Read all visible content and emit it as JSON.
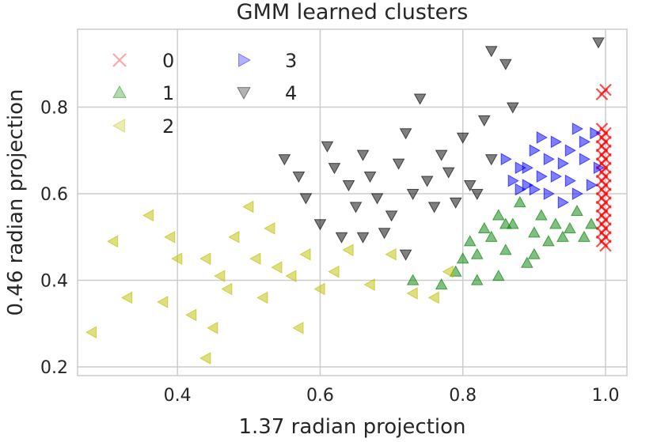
{
  "chart_data": {
    "type": "scatter",
    "title": "GMM learned clusters",
    "xlabel": "1.37 radian projection",
    "ylabel": "0.46 radian projection",
    "xlim": [
      0.26,
      1.03
    ],
    "ylim": [
      0.18,
      0.98
    ],
    "xticks": [
      "0.4",
      "0.6",
      "0.8",
      "1.0"
    ],
    "yticks": [
      "0.2",
      "0.4",
      "0.6",
      "0.8"
    ],
    "grid": true,
    "legend_position": "top-left",
    "series": [
      {
        "name": "0",
        "marker": "x",
        "color": "#ff0000",
        "points": [
          [
            1.0,
            0.84
          ],
          [
            0.995,
            0.83
          ],
          [
            0.995,
            0.75
          ],
          [
            1.0,
            0.74
          ],
          [
            0.995,
            0.73
          ],
          [
            1.0,
            0.72
          ],
          [
            0.995,
            0.71
          ],
          [
            1.0,
            0.7
          ],
          [
            0.995,
            0.69
          ],
          [
            1.0,
            0.68
          ],
          [
            0.995,
            0.67
          ],
          [
            1.0,
            0.66
          ],
          [
            0.995,
            0.65
          ],
          [
            1.0,
            0.64
          ],
          [
            0.995,
            0.63
          ],
          [
            1.0,
            0.62
          ],
          [
            0.995,
            0.61
          ],
          [
            1.0,
            0.6
          ],
          [
            0.995,
            0.59
          ],
          [
            1.0,
            0.58
          ],
          [
            0.995,
            0.57
          ],
          [
            1.0,
            0.56
          ],
          [
            0.995,
            0.55
          ],
          [
            1.0,
            0.54
          ],
          [
            0.995,
            0.53
          ],
          [
            1.0,
            0.52
          ],
          [
            0.995,
            0.51
          ],
          [
            1.0,
            0.5
          ],
          [
            0.995,
            0.49
          ],
          [
            1.0,
            0.48
          ]
        ]
      },
      {
        "name": "1",
        "marker": "triangle-up",
        "color": "#008000",
        "points": [
          [
            0.77,
            0.39
          ],
          [
            0.79,
            0.42
          ],
          [
            0.8,
            0.45
          ],
          [
            0.81,
            0.49
          ],
          [
            0.82,
            0.46
          ],
          [
            0.83,
            0.52
          ],
          [
            0.84,
            0.5
          ],
          [
            0.85,
            0.55
          ],
          [
            0.86,
            0.47
          ],
          [
            0.87,
            0.53
          ],
          [
            0.88,
            0.58
          ],
          [
            0.89,
            0.44
          ],
          [
            0.9,
            0.51
          ],
          [
            0.91,
            0.55
          ],
          [
            0.92,
            0.49
          ],
          [
            0.93,
            0.53
          ],
          [
            0.94,
            0.5
          ],
          [
            0.95,
            0.52
          ],
          [
            0.96,
            0.56
          ],
          [
            0.97,
            0.5
          ],
          [
            0.98,
            0.53
          ],
          [
            0.73,
            0.4
          ],
          [
            0.82,
            0.4
          ],
          [
            0.85,
            0.41
          ],
          [
            0.9,
            0.46
          ],
          [
            0.86,
            0.53
          ]
        ]
      },
      {
        "name": "2",
        "marker": "triangle-left",
        "color": "#bfbf00",
        "points": [
          [
            0.28,
            0.28
          ],
          [
            0.31,
            0.49
          ],
          [
            0.33,
            0.36
          ],
          [
            0.36,
            0.55
          ],
          [
            0.38,
            0.35
          ],
          [
            0.39,
            0.5
          ],
          [
            0.4,
            0.45
          ],
          [
            0.42,
            0.32
          ],
          [
            0.44,
            0.45
          ],
          [
            0.45,
            0.29
          ],
          [
            0.46,
            0.41
          ],
          [
            0.47,
            0.38
          ],
          [
            0.48,
            0.5
          ],
          [
            0.5,
            0.57
          ],
          [
            0.51,
            0.45
          ],
          [
            0.52,
            0.36
          ],
          [
            0.53,
            0.52
          ],
          [
            0.54,
            0.43
          ],
          [
            0.56,
            0.41
          ],
          [
            0.57,
            0.29
          ],
          [
            0.58,
            0.46
          ],
          [
            0.6,
            0.38
          ],
          [
            0.62,
            0.42
          ],
          [
            0.64,
            0.47
          ],
          [
            0.67,
            0.39
          ],
          [
            0.7,
            0.46
          ],
          [
            0.73,
            0.37
          ],
          [
            0.76,
            0.36
          ],
          [
            0.78,
            0.42
          ],
          [
            0.44,
            0.22
          ]
        ]
      },
      {
        "name": "3",
        "marker": "triangle-right",
        "color": "#0000ff",
        "points": [
          [
            0.86,
            0.68
          ],
          [
            0.87,
            0.63
          ],
          [
            0.88,
            0.61
          ],
          [
            0.89,
            0.66
          ],
          [
            0.9,
            0.7
          ],
          [
            0.91,
            0.64
          ],
          [
            0.92,
            0.6
          ],
          [
            0.93,
            0.72
          ],
          [
            0.94,
            0.67
          ],
          [
            0.95,
            0.63
          ],
          [
            0.96,
            0.75
          ],
          [
            0.97,
            0.68
          ],
          [
            0.98,
            0.62
          ],
          [
            0.985,
            0.74
          ],
          [
            0.99,
            0.66
          ],
          [
            0.92,
            0.68
          ],
          [
            0.94,
            0.58
          ],
          [
            0.96,
            0.6
          ],
          [
            0.88,
            0.66
          ],
          [
            0.9,
            0.61
          ],
          [
            0.97,
            0.72
          ],
          [
            0.95,
            0.7
          ],
          [
            0.93,
            0.64
          ],
          [
            0.91,
            0.73
          ],
          [
            0.89,
            0.62
          ]
        ]
      },
      {
        "name": "4",
        "marker": "triangle-down",
        "color": "#000000",
        "points": [
          [
            0.55,
            0.68
          ],
          [
            0.57,
            0.64
          ],
          [
            0.58,
            0.59
          ],
          [
            0.6,
            0.53
          ],
          [
            0.61,
            0.71
          ],
          [
            0.62,
            0.66
          ],
          [
            0.63,
            0.5
          ],
          [
            0.64,
            0.62
          ],
          [
            0.65,
            0.57
          ],
          [
            0.66,
            0.69
          ],
          [
            0.67,
            0.64
          ],
          [
            0.68,
            0.59
          ],
          [
            0.7,
            0.55
          ],
          [
            0.71,
            0.67
          ],
          [
            0.72,
            0.74
          ],
          [
            0.73,
            0.6
          ],
          [
            0.74,
            0.82
          ],
          [
            0.75,
            0.63
          ],
          [
            0.76,
            0.57
          ],
          [
            0.77,
            0.69
          ],
          [
            0.78,
            0.65
          ],
          [
            0.79,
            0.58
          ],
          [
            0.8,
            0.73
          ],
          [
            0.81,
            0.62
          ],
          [
            0.82,
            0.6
          ],
          [
            0.83,
            0.77
          ],
          [
            0.84,
            0.68
          ],
          [
            0.84,
            0.93
          ],
          [
            0.86,
            0.9
          ],
          [
            0.87,
            0.8
          ],
          [
            0.99,
            0.95
          ],
          [
            0.69,
            0.51
          ],
          [
            0.66,
            0.5
          ],
          [
            0.72,
            0.46
          ]
        ]
      }
    ]
  }
}
